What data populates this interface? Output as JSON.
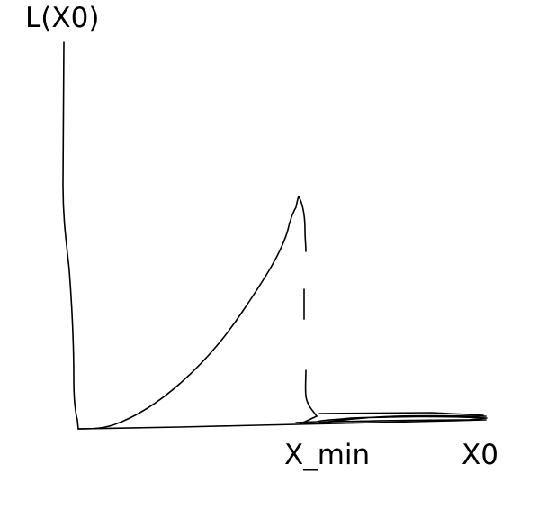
{
  "labels": {
    "y_axis": "L(X0)",
    "x_marker": "X_min",
    "x_axis": "X0"
  },
  "colors": {
    "ink": "#000000",
    "background": "#ffffff"
  }
}
